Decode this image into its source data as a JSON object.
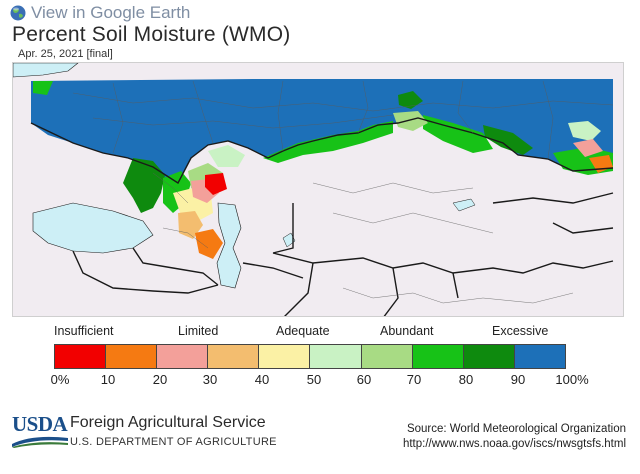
{
  "header": {
    "google_earth_link": "View in Google Earth",
    "title": "Percent Soil Moisture (WMO)",
    "date": "Apr. 25, 2021 [final]"
  },
  "legend": {
    "categories": [
      "Insufficient",
      "Limited",
      "Adequate",
      "Abundant",
      "Excessive"
    ],
    "ticks": [
      "0%",
      "10",
      "20",
      "30",
      "40",
      "50",
      "60",
      "70",
      "80",
      "90",
      "100%"
    ],
    "colors": [
      "#f20000",
      "#f57a12",
      "#f3a09a",
      "#f3bd6f",
      "#fbf1a5",
      "#c9f2c4",
      "#a8db84",
      "#17c217",
      "#0e8a0e",
      "#1d70b8"
    ]
  },
  "footer": {
    "agency_logo": "USDA",
    "agency": "Foreign Agricultural Service",
    "department": "U.S. DEPARTMENT OF AGRICULTURE",
    "source_line": "Source: World Meteorological Organization",
    "source_url": "http://www.nws.noaa.gov/iscs/nwsgtsfs.html"
  },
  "colors": {
    "land": "#f1ecf1",
    "water": "#cdeff6",
    "border": "#1a1a1a",
    "excessive": "#1d70b8"
  }
}
